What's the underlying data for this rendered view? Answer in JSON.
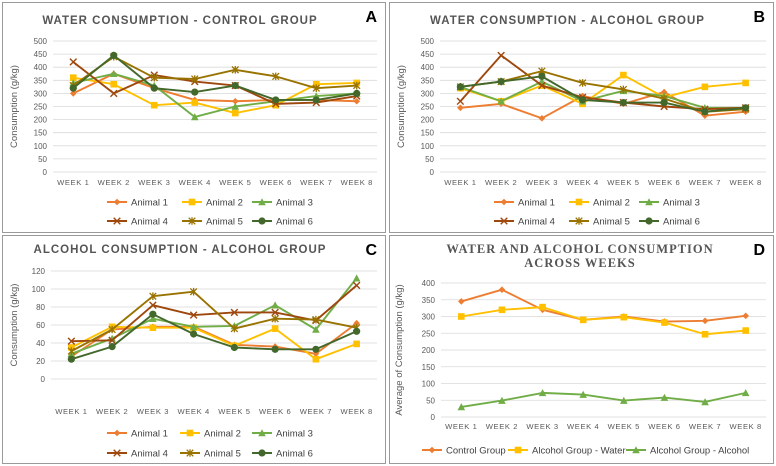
{
  "panels": [
    {
      "id": "A",
      "letter": "A",
      "title": "WATER CONSUMPTION - CONTROL GROUP",
      "chart_data": {
        "type": "line",
        "title": "WATER CONSUMPTION - CONTROL GROUP",
        "xlabel": "",
        "ylabel": "Consumption (g/kg)",
        "ylim": [
          0,
          500
        ],
        "ytick_step": 50,
        "categories": [
          "WEEK 1",
          "WEEK 2",
          "WEEK 3",
          "WEEK 4",
          "WEEK 5",
          "WEEK 6",
          "WEEK 7",
          "WEEK 8"
        ],
        "legend_position": "bottom",
        "series": [
          {
            "name": "Animal 1",
            "color": "#ED7D31",
            "marker": "diamond",
            "values": [
              300,
              375,
              320,
              275,
              270,
              275,
              275,
              270
            ]
          },
          {
            "name": "Animal 2",
            "color": "#FFC000",
            "marker": "square",
            "values": [
              360,
              335,
              255,
              265,
              225,
              255,
              335,
              340
            ]
          },
          {
            "name": "Animal 3",
            "color": "#70AD47",
            "marker": "triangle",
            "values": [
              340,
              375,
              330,
              210,
              250,
              270,
              290,
              300
            ]
          },
          {
            "name": "Animal 4",
            "color": "#9E480E",
            "marker": "x",
            "values": [
              420,
              300,
              370,
              345,
              330,
              260,
              265,
              290
            ]
          },
          {
            "name": "Animal 5",
            "color": "#997300",
            "marker": "star",
            "values": [
              330,
              440,
              360,
              355,
              390,
              365,
              320,
              330
            ]
          },
          {
            "name": "Animal 6",
            "color": "#43682B",
            "marker": "circle",
            "values": [
              320,
              445,
              320,
              305,
              330,
              275,
              275,
              300
            ]
          }
        ]
      }
    },
    {
      "id": "B",
      "letter": "B",
      "title": "WATER CONSUMPTION - ALCOHOL GROUP",
      "chart_data": {
        "type": "line",
        "title": "WATER CONSUMPTION - ALCOHOL GROUP",
        "xlabel": "",
        "ylabel": "Consumption (g/kg)",
        "ylim": [
          0,
          500
        ],
        "ytick_step": 50,
        "categories": [
          "WEEK 1",
          "WEEK 2",
          "WEEK 3",
          "WEEK 4",
          "WEEK 5",
          "WEEK 6",
          "WEEK 7",
          "WEEK 8"
        ],
        "legend_position": "bottom",
        "series": [
          {
            "name": "Animal 1",
            "color": "#ED7D31",
            "marker": "diamond",
            "values": [
              245,
              260,
              205,
              290,
              260,
              305,
              215,
              230
            ]
          },
          {
            "name": "Animal 2",
            "color": "#FFC000",
            "marker": "square",
            "values": [
              320,
              270,
              330,
              260,
              370,
              285,
              325,
              340
            ]
          },
          {
            "name": "Animal 3",
            "color": "#70AD47",
            "marker": "triangle",
            "values": [
              325,
              270,
              345,
              270,
              310,
              290,
              245,
              245
            ]
          },
          {
            "name": "Animal 4",
            "color": "#9E480E",
            "marker": "x",
            "values": [
              270,
              445,
              330,
              285,
              265,
              250,
              240,
              245
            ]
          },
          {
            "name": "Animal 5",
            "color": "#997300",
            "marker": "star",
            "values": [
              325,
              345,
              385,
              340,
              315,
              280,
              230,
              240
            ]
          },
          {
            "name": "Animal 6",
            "color": "#43682B",
            "marker": "circle",
            "values": [
              325,
              345,
              365,
              275,
              265,
              265,
              230,
              245
            ]
          }
        ]
      }
    },
    {
      "id": "C",
      "letter": "C",
      "title": "ALCOHOL CONSUMPTION - ALCOHOL GROUP",
      "chart_data": {
        "type": "line",
        "title": "ALCOHOL CONSUMPTION - ALCOHOL GROUP",
        "xlabel": "",
        "ylabel": "Consumption (g/kg)",
        "ylim": [
          0,
          120
        ],
        "ytick_step": 20,
        "categories": [
          "WEEK 1",
          "WEEK 2",
          "WEEK 3",
          "WEEK 4",
          "WEEK 5",
          "WEEK 6",
          "WEEK 7",
          "WEEK 8"
        ],
        "legend_position": "bottom",
        "series": [
          {
            "name": "Animal 1",
            "color": "#ED7D31",
            "marker": "diamond",
            "values": [
              25,
              55,
              58,
              58,
              38,
              36,
              28,
              62
            ]
          },
          {
            "name": "Animal 2",
            "color": "#FFC000",
            "marker": "square",
            "values": [
              35,
              58,
              57,
              57,
              37,
              56,
              22,
              39
            ]
          },
          {
            "name": "Animal 3",
            "color": "#70AD47",
            "marker": "triangle",
            "values": [
              28,
              45,
              67,
              58,
              59,
              82,
              55,
              112
            ]
          },
          {
            "name": "Animal 4",
            "color": "#9E480E",
            "marker": "x",
            "values": [
              42,
              43,
              82,
              71,
              74,
              74,
              65,
              104
            ]
          },
          {
            "name": "Animal 5",
            "color": "#997300",
            "marker": "star",
            "values": [
              31,
              55,
              92,
              97,
              56,
              67,
              66,
              57
            ]
          },
          {
            "name": "Animal 6",
            "color": "#43682B",
            "marker": "circle",
            "values": [
              22,
              36,
              72,
              50,
              35,
              33,
              33,
              53
            ]
          }
        ]
      }
    },
    {
      "id": "D",
      "letter": "D",
      "title": "WATER AND ALCOHOL CONSUMPTION ACROSS WEEKS",
      "chart_data": {
        "type": "line",
        "title": "WATER AND ALCOHOL CONSUMPTION ACROSS WEEKS",
        "xlabel": "",
        "ylabel": "Average of Consumption (g/kg)",
        "ylim": [
          0,
          400
        ],
        "ytick_step": 50,
        "categories": [
          "WEEK 1",
          "WEEK 2",
          "WEEK 3",
          "WEEK 4",
          "WEEK 5",
          "WEEK 6",
          "WEEK 7",
          "WEEK 8"
        ],
        "legend_position": "bottom",
        "series": [
          {
            "name": "Control Group",
            "color": "#ED7D31",
            "marker": "diamond",
            "values": [
              345,
              380,
              320,
              290,
              300,
              285,
              287,
              302
            ]
          },
          {
            "name": "Alcohol Group - Water",
            "color": "#FFC000",
            "marker": "square",
            "values": [
              300,
              320,
              328,
              290,
              298,
              282,
              247,
              258
            ]
          },
          {
            "name": "Alcohol Group - Alcohol",
            "color": "#70AD47",
            "marker": "triangle",
            "values": [
              30,
              49,
              72,
              67,
              49,
              58,
              45,
              72
            ]
          }
        ]
      }
    }
  ]
}
